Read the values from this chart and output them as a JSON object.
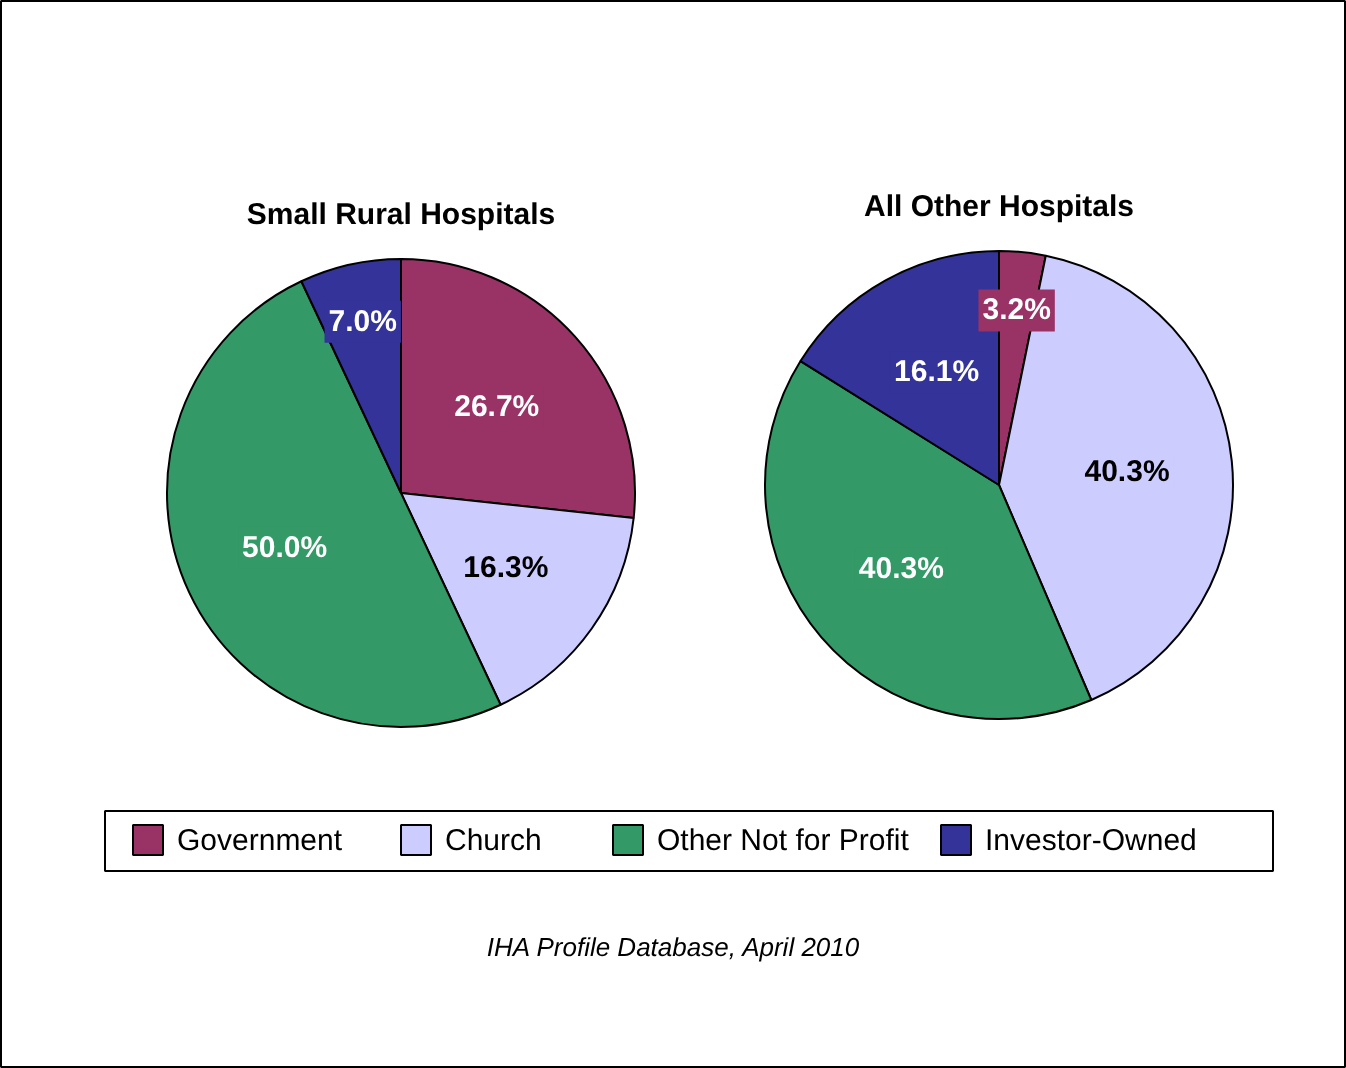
{
  "chart_data": [
    {
      "type": "pie",
      "title": "Small Rural Hospitals",
      "categories": [
        "Government",
        "Church",
        "Other Not for Profit",
        "Investor-Owned"
      ],
      "values": [
        26.7,
        16.3,
        50.0,
        7.0
      ],
      "colors": [
        "#993366",
        "#ccccff",
        "#339966",
        "#333399"
      ],
      "value_labels": [
        "26.7%",
        "16.3%",
        "50.0%",
        "7.0%"
      ],
      "legend": "bottom",
      "annotations": [
        "IHA Profile Database, April 2010"
      ]
    },
    {
      "type": "pie",
      "title": "All Other Hospitals",
      "categories": [
        null,
        null,
        null,
        null
      ],
      "values": [
        3.2,
        40.3,
        40.3,
        16.1
      ],
      "colors": [
        "#993366",
        "#ccccff",
        "#339966",
        "#333399"
      ],
      "value_labels": [
        "3.2%",
        "40.3%",
        "40.3%",
        "16.1%"
      ]
    }
  ]
}
